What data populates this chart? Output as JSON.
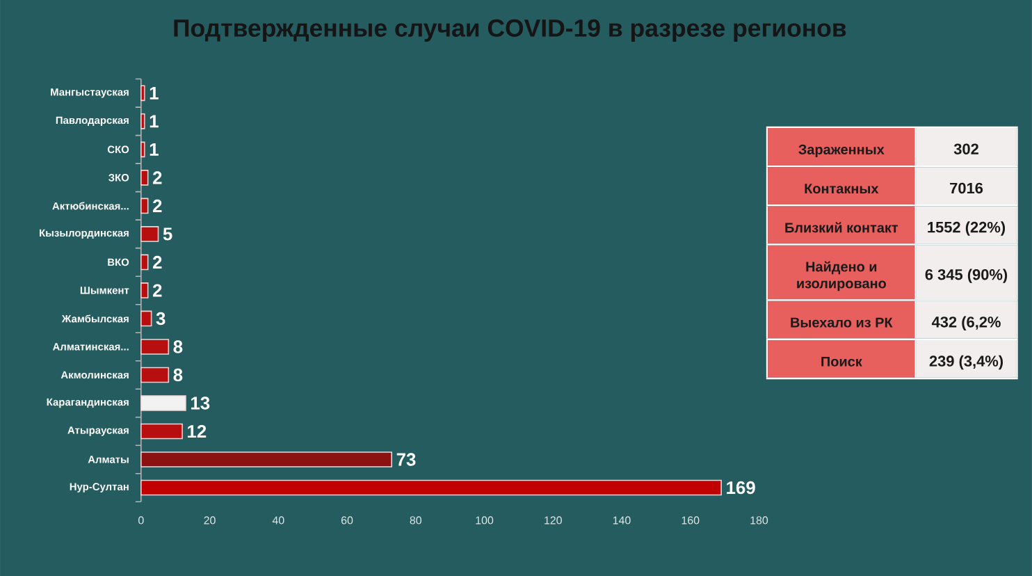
{
  "chart_data": [
    {
      "type": "bar",
      "title": "Подтвержденные случаи COVID-19 в разрезе регионов",
      "orientation": "horizontal",
      "categories": [
        "Мангыстауская",
        "Павлодарская",
        "СКО",
        "ЗКО",
        "Актюбинская...",
        "Кызылординская",
        "ВКО",
        "Шымкент",
        "Жамбылская",
        "Алматинская...",
        "Акмолинская",
        "Карагандинская",
        "Атырауская",
        "Алматы",
        "Нур-Султан"
      ],
      "values": [
        1,
        1,
        1,
        2,
        2,
        5,
        2,
        2,
        3,
        8,
        8,
        13,
        12,
        73,
        169
      ],
      "colors": [
        "#b70f0f",
        "#b70f0f",
        "#b70f0f",
        "#b70f0f",
        "#b70f0f",
        "#b70f0f",
        "#b70f0f",
        "#b70f0f",
        "#b70f0f",
        "#b70f0f",
        "#b70f0f",
        "#f2f2f2",
        "#b70f0f",
        "#8c1111",
        "#c00000"
      ],
      "xlim": [
        0,
        180
      ],
      "xticks": [
        0,
        20,
        40,
        60,
        80,
        100,
        120,
        140,
        160,
        180
      ],
      "data_labels": true
    },
    {
      "type": "other",
      "annotations": [
        "Зараженных",
        "302",
        "Контакных",
        "7016",
        "Близкий контакт",
        "1552 (22%)",
        "Найдено и изолировано",
        "6 345 (90%)",
        "Выехало из РК",
        "432 (6,2%",
        "Поиск",
        "239 (3,4%)"
      ]
    }
  ]
}
